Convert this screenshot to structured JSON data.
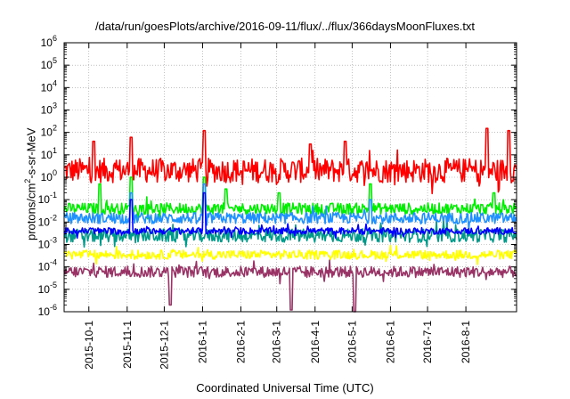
{
  "title": "/data/run/goesPlots/archive/2016-09-11/flux/../flux/366daysMoonFluxes.txt",
  "chart_data": {
    "type": "line",
    "title": "/data/run/goesPlots/archive/2016-09-11/flux/../flux/366daysMoonFluxes.txt",
    "xlabel": "Coordinated Universal Time (UTC)",
    "ylabel": "protons/cm²-s-sr-MeV",
    "ylabel_base": "protons/cm",
    "ylabel_sup": "2",
    "ylabel_rest": "-s-sr-MeV",
    "y_scale": "log",
    "ylim": [
      1e-06,
      1000000.0
    ],
    "xlim": [
      "2015-09-11",
      "2016-09-11"
    ],
    "grid": true,
    "x_ticks": [
      "2015-10-1",
      "2015-11-1",
      "2015-12-1",
      "2016-1-1",
      "2016-2-1",
      "2016-3-1",
      "2016-4-1",
      "2016-5-1",
      "2016-6-1",
      "2016-7-1",
      "2016-8-1"
    ],
    "y_ticks": [
      {
        "base": "10",
        "exp": "-6"
      },
      {
        "base": "10",
        "exp": "-5"
      },
      {
        "base": "10",
        "exp": "-4"
      },
      {
        "base": "10",
        "exp": "-3"
      },
      {
        "base": "10",
        "exp": "-2"
      },
      {
        "base": "10",
        "exp": "-1"
      },
      {
        "base": "10",
        "exp": "0"
      },
      {
        "base": "10",
        "exp": "1"
      },
      {
        "base": "10",
        "exp": "2"
      },
      {
        "base": "10",
        "exp": "3"
      },
      {
        "base": "10",
        "exp": "4"
      },
      {
        "base": "10",
        "exp": "5"
      },
      {
        "base": "10",
        "exp": "6"
      }
    ],
    "series": [
      {
        "color": "#ff0000",
        "baseline": 2.0,
        "noise": 0.55,
        "spikes": [
          [
            "2015-10-5",
            40
          ],
          [
            "2015-11-4",
            60
          ],
          [
            "2016-1-2",
            120
          ],
          [
            "2016-3-28",
            30
          ],
          [
            "2016-4-25",
            40
          ],
          [
            "2016-8-18",
            150
          ],
          [
            "2016-9-5",
            120
          ]
        ]
      },
      {
        "color": "#00ee00",
        "baseline": 0.04,
        "noise": 0.25,
        "spikes": [
          [
            "2015-10-10",
            0.5
          ],
          [
            "2015-11-4",
            1.0
          ],
          [
            "2016-1-2",
            1.0
          ],
          [
            "2016-1-20",
            0.3
          ],
          [
            "2016-3-3",
            0.2
          ],
          [
            "2016-5-16",
            0.5
          ],
          [
            "2016-8-24",
            0.2
          ]
        ]
      },
      {
        "color": "#1e90ff",
        "baseline": 0.015,
        "noise": 0.25,
        "spikes": [
          [
            "2015-11-4",
            0.2
          ],
          [
            "2016-1-2",
            0.5
          ],
          [
            "2016-5-16",
            0.1
          ]
        ]
      },
      {
        "color": "#009a8a",
        "baseline": 0.0025,
        "noise": 0.3,
        "spikes": []
      },
      {
        "color": "#0000ff",
        "baseline": 0.004,
        "noise": 0.15,
        "spikes": [
          [
            "2015-11-4",
            0.1
          ],
          [
            "2016-1-2",
            0.2
          ]
        ]
      },
      {
        "color": "#ffff00",
        "baseline": 0.00035,
        "noise": 0.2,
        "spikes": []
      },
      {
        "color": "#993366",
        "baseline": 6e-05,
        "noise": 0.25,
        "spikes": [
          [
            "2015-12-6",
            2e-06
          ],
          [
            "2016-3-13",
            1.2e-06
          ],
          [
            "2016-5-3",
            9e-07
          ]
        ]
      }
    ]
  }
}
